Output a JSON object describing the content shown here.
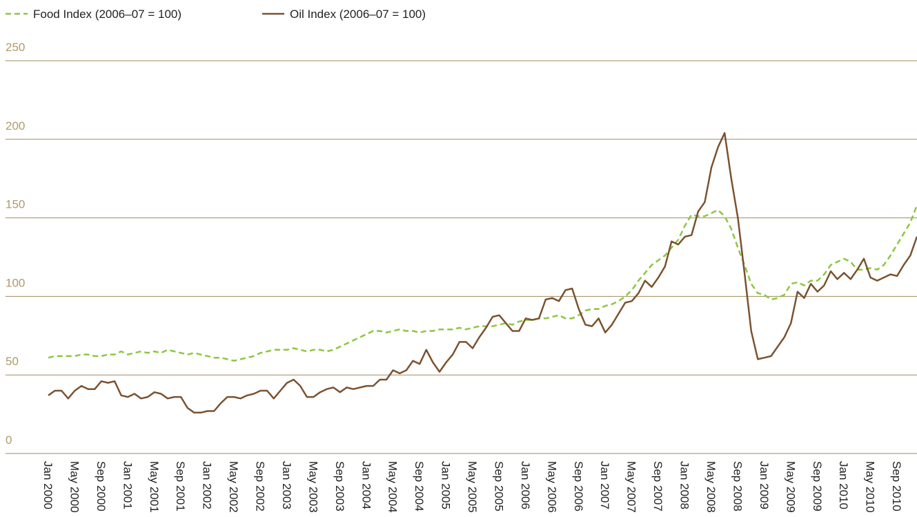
{
  "chart_data": {
    "type": "line",
    "categories": [
      "Jan 2000",
      null,
      null,
      null,
      "May 2000",
      null,
      null,
      null,
      "Sep 2000",
      null,
      null,
      null,
      "Jan 2001",
      null,
      null,
      null,
      "May 2001",
      null,
      null,
      null,
      "Sep 2001",
      null,
      null,
      null,
      "Jan 2002",
      null,
      null,
      null,
      "May 2002",
      null,
      null,
      null,
      "Sep 2002",
      null,
      null,
      null,
      "Jan 2003",
      null,
      null,
      null,
      "May 2003",
      null,
      null,
      null,
      "Sep 2003",
      null,
      null,
      null,
      "Jan 2004",
      null,
      null,
      null,
      "May 2004",
      null,
      null,
      null,
      "Sep 2004",
      null,
      null,
      null,
      "Jan 2005",
      null,
      null,
      null,
      "May 2005",
      null,
      null,
      null,
      "Sep 2005",
      null,
      null,
      null,
      "Jan 2006",
      null,
      null,
      null,
      "May 2006",
      null,
      null,
      null,
      "Sep 2006",
      null,
      null,
      null,
      "Jan 2007",
      null,
      null,
      null,
      "May 2007",
      null,
      null,
      null,
      "Sep 2007",
      null,
      null,
      null,
      "Jan 2008",
      null,
      null,
      null,
      "May 2008",
      null,
      null,
      null,
      "Sep 2008",
      null,
      null,
      null,
      "Jan 2009",
      null,
      null,
      null,
      "May 2009",
      null,
      null,
      null,
      "Sep 2009",
      null,
      null,
      null,
      "Jan 2010",
      null,
      null,
      null,
      "May 2010",
      null,
      null,
      null,
      "Sep 2010",
      null,
      null,
      null
    ],
    "series": [
      {
        "name": "Food Index (2006–07 = 100)",
        "color": "#8dc63f",
        "dashed": true,
        "values": [
          61,
          62,
          62,
          62,
          62,
          63,
          63,
          62,
          62,
          63,
          63,
          65,
          63,
          64,
          65,
          64,
          65,
          64,
          66,
          65,
          64,
          63,
          64,
          63,
          62,
          61,
          61,
          60,
          59,
          60,
          61,
          62,
          64,
          65,
          66,
          66,
          66,
          67,
          66,
          65,
          66,
          66,
          65,
          66,
          68,
          70,
          72,
          74,
          76,
          78,
          78,
          77,
          78,
          79,
          78,
          78,
          77,
          78,
          78,
          79,
          79,
          79,
          80,
          79,
          80,
          81,
          81,
          81,
          82,
          83,
          82,
          84,
          85,
          85,
          86,
          86,
          87,
          88,
          86,
          86,
          88,
          91,
          92,
          92,
          94,
          95,
          97,
          100,
          104,
          110,
          115,
          120,
          123,
          126,
          131,
          136,
          145,
          152,
          151,
          151,
          153,
          155,
          151,
          143,
          131,
          120,
          108,
          102,
          101,
          98,
          99,
          101,
          108,
          109,
          107,
          110,
          110,
          114,
          120,
          122,
          124,
          122,
          117,
          117,
          118,
          117,
          120,
          126,
          133,
          140,
          147,
          158
        ]
      },
      {
        "name": "Oil Index (2006–07 = 100)",
        "color": "#7a5230",
        "dashed": false,
        "values": [
          37,
          40,
          40,
          35,
          40,
          43,
          41,
          41,
          46,
          45,
          46,
          37,
          36,
          38,
          35,
          36,
          39,
          38,
          35,
          36,
          36,
          29,
          26,
          26,
          27,
          27,
          32,
          36,
          36,
          35,
          37,
          38,
          40,
          40,
          35,
          40,
          45,
          47,
          43,
          36,
          36,
          39,
          41,
          42,
          39,
          42,
          41,
          42,
          43,
          43,
          47,
          47,
          53,
          51,
          53,
          59,
          57,
          66,
          58,
          52,
          58,
          63,
          71,
          71,
          67,
          74,
          80,
          87,
          88,
          83,
          78,
          78,
          86,
          85,
          86,
          98,
          99,
          97,
          104,
          105,
          92,
          82,
          81,
          86,
          77,
          82,
          89,
          96,
          97,
          102,
          110,
          106,
          112,
          119,
          135,
          133,
          138,
          139,
          154,
          160,
          182,
          195,
          204,
          175,
          150,
          115,
          78,
          60,
          61,
          62,
          68,
          74,
          83,
          103,
          99,
          108,
          103,
          107,
          116,
          111,
          115,
          111,
          117,
          124,
          112,
          110,
          112,
          114,
          113,
          120,
          126,
          138
        ]
      }
    ],
    "ylim": [
      0,
      250
    ],
    "yticks": [
      0,
      50,
      100,
      150,
      200,
      250
    ],
    "grid": true,
    "grid_color": "#a08a5e",
    "legend": "top"
  }
}
